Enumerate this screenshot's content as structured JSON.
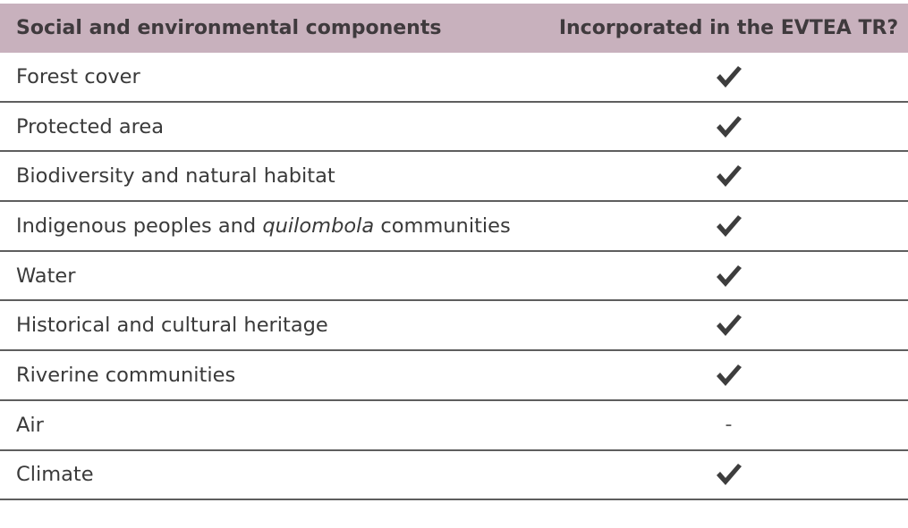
{
  "table": {
    "headers": [
      "Social and environmental components",
      "Incorporated in the EVTEA TR?"
    ],
    "rows": [
      {
        "component": "Forest cover",
        "incorporated": "check-icon"
      },
      {
        "component": "Protected area",
        "incorporated": "check-icon"
      },
      {
        "component": "Biodiversity and natural habitat",
        "incorporated": "check-icon"
      },
      {
        "component_parts": [
          "Indigenous peoples and ",
          "quilombola",
          " communities"
        ],
        "incorporated": "check-icon"
      },
      {
        "component": "Water",
        "incorporated": "check-icon"
      },
      {
        "component": "Historical and cultural heritage",
        "incorporated": "check-icon"
      },
      {
        "component": "Riverine communities",
        "incorporated": "check-icon"
      },
      {
        "component": "Air",
        "incorporated": "-"
      },
      {
        "component": "Climate",
        "incorporated": "check-icon"
      }
    ]
  },
  "colors": {
    "header_bg": "#c8b1bd",
    "text": "#3a3a3a",
    "rule": "#5e5e5e",
    "check": "#3d3d3d"
  }
}
